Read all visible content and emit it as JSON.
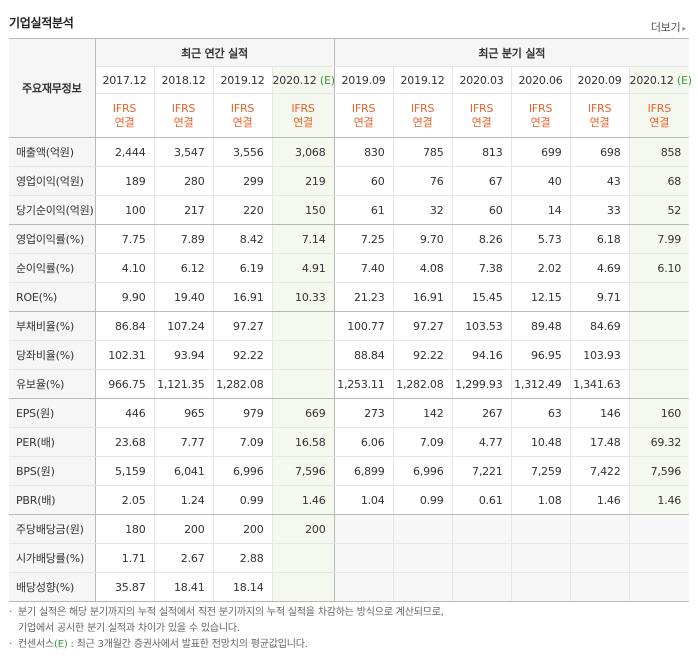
{
  "title": "기업실적분석",
  "more_label": "더보기",
  "corner_label": "주요재무정보",
  "groups": {
    "annual": "최근 연간 실적",
    "quarter": "최근 분기 실적"
  },
  "periods": [
    {
      "label": "2017.12",
      "est": false
    },
    {
      "label": "2018.12",
      "est": false
    },
    {
      "label": "2019.12",
      "est": false
    },
    {
      "label": "2020.12",
      "suffix": "(E)",
      "est": true
    },
    {
      "label": "2019.09",
      "est": false
    },
    {
      "label": "2019.12",
      "est": false
    },
    {
      "label": "2020.03",
      "est": false
    },
    {
      "label": "2020.06",
      "est": false
    },
    {
      "label": "2020.09",
      "est": false
    },
    {
      "label": "2020.12",
      "suffix": "(E)",
      "est": true
    }
  ],
  "ifrs": {
    "line1": "IFRS",
    "line2": "연결"
  },
  "rows": [
    {
      "label": "매출액(억원)",
      "values": [
        "2,444",
        "3,547",
        "3,556",
        "3,068",
        "830",
        "785",
        "813",
        "699",
        "698",
        "858"
      ]
    },
    {
      "label": "영업이익(억원)",
      "values": [
        "189",
        "280",
        "299",
        "219",
        "60",
        "76",
        "67",
        "40",
        "43",
        "68"
      ]
    },
    {
      "label": "당기순이익(억원)",
      "values": [
        "100",
        "217",
        "220",
        "150",
        "61",
        "32",
        "60",
        "14",
        "33",
        "52"
      ],
      "group_end": true
    },
    {
      "label": "영업이익률(%)",
      "values": [
        "7.75",
        "7.89",
        "8.42",
        "7.14",
        "7.25",
        "9.70",
        "8.26",
        "5.73",
        "6.18",
        "7.99"
      ]
    },
    {
      "label": "순이익률(%)",
      "values": [
        "4.10",
        "6.12",
        "6.19",
        "4.91",
        "7.40",
        "4.08",
        "7.38",
        "2.02",
        "4.69",
        "6.10"
      ]
    },
    {
      "label": "ROE(%)",
      "values": [
        "9.90",
        "19.40",
        "16.91",
        "10.33",
        "21.23",
        "16.91",
        "15.45",
        "12.15",
        "9.71",
        ""
      ],
      "group_end": true
    },
    {
      "label": "부채비율(%)",
      "values": [
        "86.84",
        "107.24",
        "97.27",
        "",
        "100.77",
        "97.27",
        "103.53",
        "89.48",
        "84.69",
        ""
      ]
    },
    {
      "label": "당좌비율(%)",
      "values": [
        "102.31",
        "93.94",
        "92.22",
        "",
        "88.84",
        "92.22",
        "94.16",
        "96.95",
        "103.93",
        ""
      ]
    },
    {
      "label": "유보율(%)",
      "values": [
        "966.75",
        "1,121.35",
        "1,282.08",
        "",
        "1,253.11",
        "1,282.08",
        "1,299.93",
        "1,312.49",
        "1,341.63",
        ""
      ],
      "group_end": true
    },
    {
      "label": "EPS(원)",
      "values": [
        "446",
        "965",
        "979",
        "669",
        "273",
        "142",
        "267",
        "63",
        "146",
        "160"
      ]
    },
    {
      "label": "PER(배)",
      "values": [
        "23.68",
        "7.77",
        "7.09",
        "16.58",
        "6.06",
        "7.09",
        "4.77",
        "10.48",
        "17.48",
        "69.32"
      ]
    },
    {
      "label": "BPS(원)",
      "values": [
        "5,159",
        "6,041",
        "6,996",
        "7,596",
        "6,899",
        "6,996",
        "7,221",
        "7,259",
        "7,422",
        "7,596"
      ]
    },
    {
      "label": "PBR(배)",
      "values": [
        "2.05",
        "1.24",
        "0.99",
        "1.46",
        "1.04",
        "0.99",
        "0.61",
        "1.08",
        "1.46",
        "1.46"
      ],
      "group_end": true
    },
    {
      "label": "주당배당금(원)",
      "values": [
        "180",
        "200",
        "200",
        "200",
        "",
        "",
        "",
        "",
        "",
        ""
      ],
      "quarter_empty": true
    },
    {
      "label": "시가배당률(%)",
      "values": [
        "1.71",
        "2.67",
        "2.88",
        "",
        "",
        "",
        "",
        "",
        "",
        ""
      ],
      "quarter_empty": true
    },
    {
      "label": "배당성향(%)",
      "values": [
        "35.87",
        "18.41",
        "18.14",
        "",
        "",
        "",
        "",
        "",
        "",
        ""
      ],
      "quarter_empty": true
    }
  ],
  "notes": {
    "line1": "분기 실적은 해당 분기까지의 누적 실적에서 직전 분기까지의 누적 실적을 차감하는 방식으로 계산되므로,",
    "line2": "기업에서 공시한 분기 실적과 차이가 있을 수 있습니다.",
    "line3_prefix": "컨센서스",
    "line3_e": "(E)",
    "line3_rest": ": 최근 3개월간 증권사에서 발표한 전망치의 평균값입니다."
  },
  "colors": {
    "ifrs": "#e8632b",
    "estimate_bg": "#f4f8ef",
    "header_bg": "#f6f6f6",
    "consensus_e": "#3a9c3a"
  }
}
